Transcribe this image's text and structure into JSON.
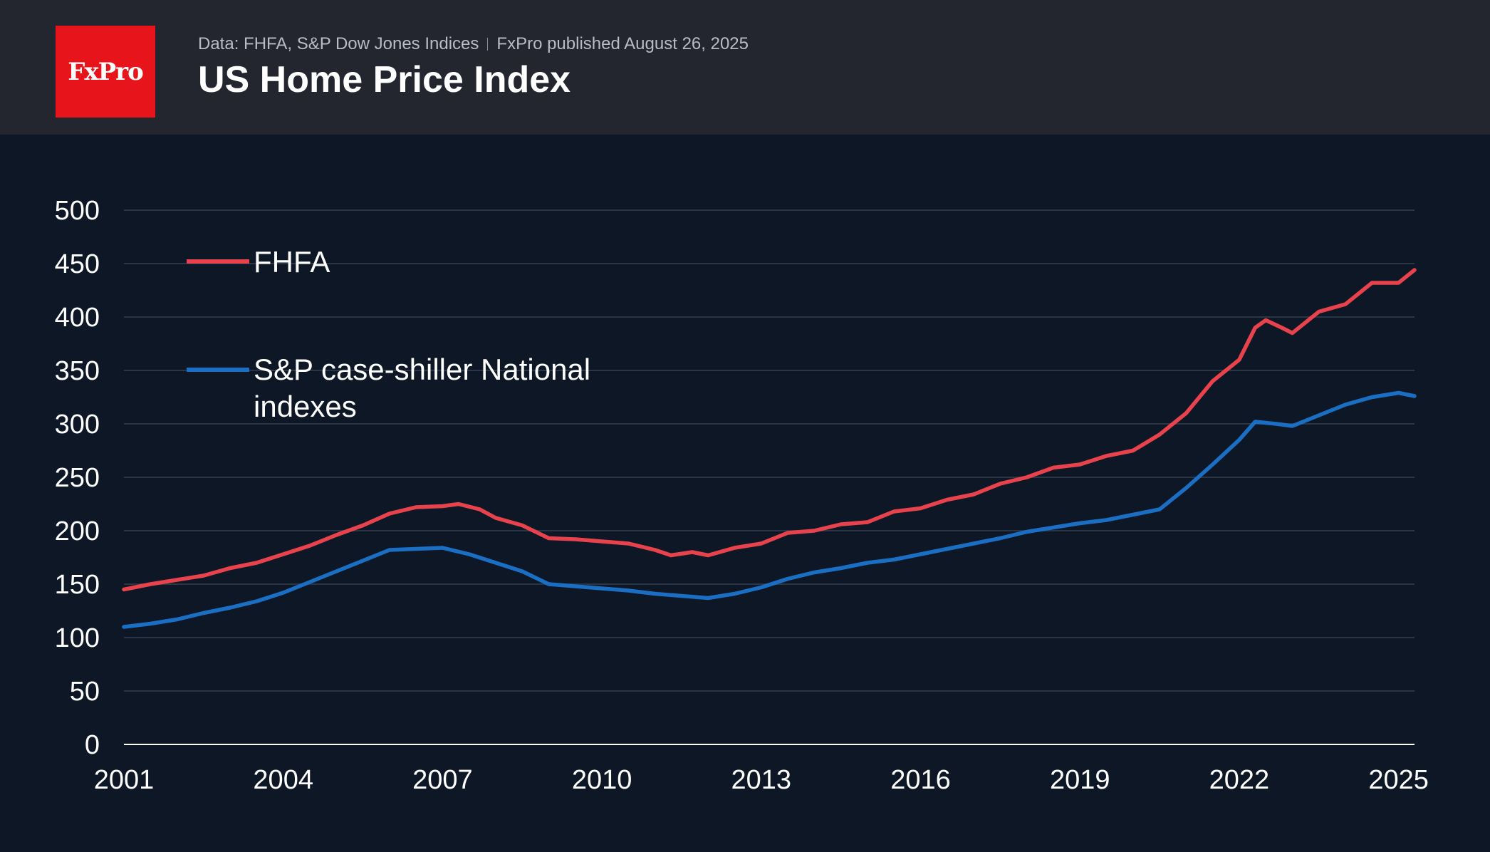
{
  "header": {
    "logo_text": "FxPro",
    "source_part1": "Data: FHFA, S&P Dow Jones Indices",
    "source_part2": "FxPro published August 26, 2025",
    "title": "US Home Price Index"
  },
  "colors": {
    "fhfa": "#e8434c",
    "sp": "#1a6fc4",
    "background": "#0d1726",
    "header": "#24262f",
    "logo": "#e8141b"
  },
  "chart_data": {
    "type": "line",
    "title": "US Home Price Index",
    "xlabel": "",
    "ylabel": "",
    "xlim": [
      2001,
      2025.3
    ],
    "ylim": [
      0,
      500
    ],
    "yticks": [
      0,
      50,
      100,
      150,
      200,
      250,
      300,
      350,
      400,
      450,
      500
    ],
    "xticks": [
      "2001",
      "2004",
      "2007",
      "2010",
      "2013",
      "2016",
      "2019",
      "2022",
      "2025"
    ],
    "grid": "horizontal",
    "legend_position": "top-left",
    "legend_labels": {
      "fhfa": "FHFA",
      "sp_line1": "S&P case-shiller National",
      "sp_line2": "indexes"
    },
    "series": [
      {
        "name": "FHFA",
        "color": "#e8434c",
        "points": [
          [
            2001.0,
            145
          ],
          [
            2001.5,
            150
          ],
          [
            2002.0,
            154
          ],
          [
            2002.5,
            158
          ],
          [
            2003.0,
            165
          ],
          [
            2003.5,
            170
          ],
          [
            2004.0,
            178
          ],
          [
            2004.5,
            186
          ],
          [
            2005.0,
            196
          ],
          [
            2005.5,
            205
          ],
          [
            2006.0,
            216
          ],
          [
            2006.5,
            222
          ],
          [
            2007.0,
            223
          ],
          [
            2007.3,
            225
          ],
          [
            2007.7,
            220
          ],
          [
            2008.0,
            212
          ],
          [
            2008.5,
            205
          ],
          [
            2009.0,
            193
          ],
          [
            2009.5,
            192
          ],
          [
            2010.0,
            190
          ],
          [
            2010.5,
            188
          ],
          [
            2011.0,
            182
          ],
          [
            2011.3,
            177
          ],
          [
            2011.7,
            180
          ],
          [
            2012.0,
            177
          ],
          [
            2012.5,
            184
          ],
          [
            2013.0,
            188
          ],
          [
            2013.5,
            198
          ],
          [
            2014.0,
            200
          ],
          [
            2014.5,
            206
          ],
          [
            2015.0,
            208
          ],
          [
            2015.5,
            218
          ],
          [
            2016.0,
            221
          ],
          [
            2016.5,
            229
          ],
          [
            2017.0,
            234
          ],
          [
            2017.5,
            244
          ],
          [
            2018.0,
            250
          ],
          [
            2018.5,
            259
          ],
          [
            2019.0,
            262
          ],
          [
            2019.5,
            270
          ],
          [
            2020.0,
            275
          ],
          [
            2020.5,
            290
          ],
          [
            2021.0,
            310
          ],
          [
            2021.5,
            340
          ],
          [
            2022.0,
            360
          ],
          [
            2022.3,
            390
          ],
          [
            2022.5,
            397
          ],
          [
            2022.8,
            390
          ],
          [
            2023.0,
            385
          ],
          [
            2023.5,
            405
          ],
          [
            2024.0,
            412
          ],
          [
            2024.5,
            432
          ],
          [
            2025.0,
            432
          ],
          [
            2025.3,
            444
          ]
        ]
      },
      {
        "name": "S&P case-shiller National indexes",
        "color": "#1a6fc4",
        "points": [
          [
            2001.0,
            110
          ],
          [
            2001.5,
            113
          ],
          [
            2002.0,
            117
          ],
          [
            2002.5,
            123
          ],
          [
            2003.0,
            128
          ],
          [
            2003.5,
            134
          ],
          [
            2004.0,
            142
          ],
          [
            2004.5,
            152
          ],
          [
            2005.0,
            162
          ],
          [
            2005.5,
            172
          ],
          [
            2006.0,
            182
          ],
          [
            2006.5,
            183
          ],
          [
            2007.0,
            184
          ],
          [
            2007.5,
            178
          ],
          [
            2008.0,
            170
          ],
          [
            2008.5,
            162
          ],
          [
            2009.0,
            150
          ],
          [
            2009.5,
            148
          ],
          [
            2010.0,
            146
          ],
          [
            2010.5,
            144
          ],
          [
            2011.0,
            141
          ],
          [
            2011.5,
            139
          ],
          [
            2012.0,
            137
          ],
          [
            2012.5,
            141
          ],
          [
            2013.0,
            147
          ],
          [
            2013.5,
            155
          ],
          [
            2014.0,
            161
          ],
          [
            2014.5,
            165
          ],
          [
            2015.0,
            170
          ],
          [
            2015.5,
            173
          ],
          [
            2016.0,
            178
          ],
          [
            2016.5,
            183
          ],
          [
            2017.0,
            188
          ],
          [
            2017.5,
            193
          ],
          [
            2018.0,
            199
          ],
          [
            2018.5,
            203
          ],
          [
            2019.0,
            207
          ],
          [
            2019.5,
            210
          ],
          [
            2020.0,
            215
          ],
          [
            2020.5,
            220
          ],
          [
            2021.0,
            240
          ],
          [
            2021.5,
            262
          ],
          [
            2022.0,
            285
          ],
          [
            2022.3,
            302
          ],
          [
            2022.7,
            300
          ],
          [
            2023.0,
            298
          ],
          [
            2023.5,
            308
          ],
          [
            2024.0,
            318
          ],
          [
            2024.5,
            325
          ],
          [
            2025.0,
            329
          ],
          [
            2025.3,
            326
          ]
        ]
      }
    ]
  }
}
